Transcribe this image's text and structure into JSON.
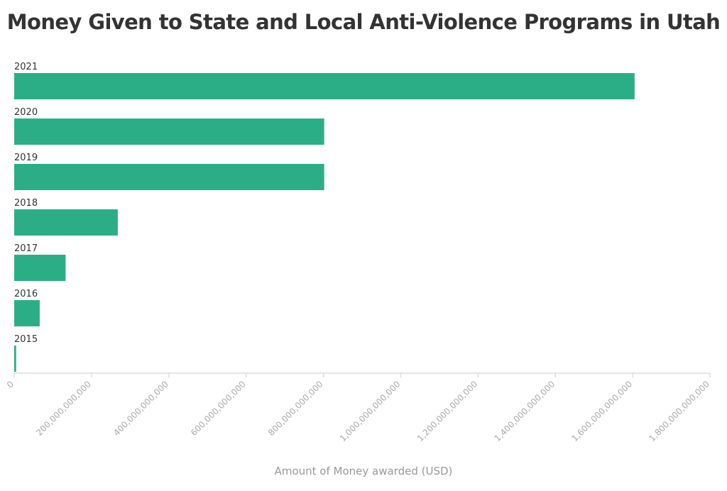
{
  "chart_data": {
    "type": "bar",
    "orientation": "horizontal",
    "title": "Money Given to State and Local Anti-Violence Programs in Utah",
    "xlabel": "Amount of Money awarded (USD)",
    "ylabel": "",
    "categories": [
      "2021",
      "2020",
      "2019",
      "2018",
      "2017",
      "2016",
      "2015"
    ],
    "values": [
      1605000000000,
      802000000000,
      802000000000,
      268000000000,
      133000000000,
      66000000000,
      5000000000
    ],
    "xlim": [
      0,
      1800000000000
    ],
    "ticks": [
      0,
      200000000000,
      400000000000,
      600000000000,
      800000000000,
      1000000000000,
      1200000000000,
      1400000000000,
      1600000000000,
      1800000000000
    ],
    "tick_labels": [
      "0",
      "200,000,000,000",
      "400,000,000,000",
      "600,000,000,000",
      "800,000,000,000",
      "1,000,000,000,000",
      "1,200,000,000,000",
      "1,400,000,000,000",
      "1,600,000,000,000",
      "1,800,000,000,000"
    ],
    "bar_color": "#2bae86",
    "axis_color": "#dddddd",
    "grid": false,
    "legend": "none"
  }
}
